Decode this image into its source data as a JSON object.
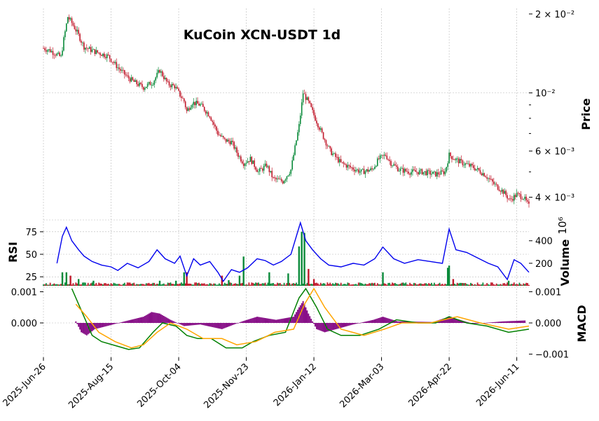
{
  "chart_data": {
    "type": "candlestick",
    "title": "KuCoin XCN-USDT 1d",
    "x_tick_labels": [
      "2025-Jun-26",
      "2025-Aug-15",
      "2025-Oct-04",
      "2025-Nov-23",
      "2026-Jan-12",
      "2026-Mar-03",
      "2026-Apr-22",
      "2026-Jun-11"
    ],
    "x_range": [
      "2025-Jun-26",
      "2026-Jun-20"
    ],
    "grid": true,
    "colors": {
      "up": "#0a8a3a",
      "down": "#c0182a",
      "rsi_line": "#0000ee",
      "macd_line": "#008000",
      "signal_line": "#ffa500",
      "histogram": "#800080"
    },
    "panels": {
      "price": {
        "ylabel": "Price",
        "scale": "log",
        "ylim": [
          0.0034,
          0.021
        ],
        "tick_labels": [
          "2 × 10⁻²",
          "10⁻²",
          "6 × 10⁻³",
          "4 × 10⁻³"
        ],
        "tick_values": [
          0.02,
          0.01,
          0.006,
          0.004
        ],
        "close_path": [
          [
            "2025-06-26",
            0.0148
          ],
          [
            "2025-07-01",
            0.0145
          ],
          [
            "2025-07-05",
            0.0141
          ],
          [
            "2025-07-09",
            0.0137
          ],
          [
            "2025-07-11",
            0.016
          ],
          [
            "2025-07-14",
            0.0195
          ],
          [
            "2025-07-17",
            0.0185
          ],
          [
            "2025-07-21",
            0.017
          ],
          [
            "2025-07-26",
            0.015
          ],
          [
            "2025-08-01",
            0.0145
          ],
          [
            "2025-08-06",
            0.0142
          ],
          [
            "2025-08-13",
            0.0138
          ],
          [
            "2025-08-20",
            0.0125
          ],
          [
            "2025-08-27",
            0.0115
          ],
          [
            "2025-09-01",
            0.011
          ],
          [
            "2025-09-08",
            0.0105
          ],
          [
            "2025-09-15",
            0.011
          ],
          [
            "2025-09-20",
            0.0122
          ],
          [
            "2025-09-26",
            0.0108
          ],
          [
            "2025-10-01",
            0.0106
          ],
          [
            "2025-10-04",
            0.01
          ],
          [
            "2025-10-08",
            0.0093
          ],
          [
            "2025-10-10",
            0.0085
          ],
          [
            "2025-10-14",
            0.0092
          ],
          [
            "2025-10-20",
            0.009
          ],
          [
            "2025-10-27",
            0.0082
          ],
          [
            "2025-11-02",
            0.007
          ],
          [
            "2025-11-07",
            0.0066
          ],
          [
            "2025-11-12",
            0.0065
          ],
          [
            "2025-11-17",
            0.0058
          ],
          [
            "2025-11-21",
            0.0054
          ],
          [
            "2025-11-26",
            0.0056
          ],
          [
            "2025-12-02",
            0.005
          ],
          [
            "2025-12-08",
            0.0053
          ],
          [
            "2025-12-13",
            0.0047
          ],
          [
            "2025-12-20",
            0.0046
          ],
          [
            "2025-12-26",
            0.0051
          ],
          [
            "2026-01-01",
            0.0075
          ],
          [
            "2026-01-04",
            0.01
          ],
          [
            "2026-01-08",
            0.0092
          ],
          [
            "2026-01-13",
            0.008
          ],
          [
            "2026-01-19",
            0.0068
          ],
          [
            "2026-01-24",
            0.006
          ],
          [
            "2026-02-01",
            0.0054
          ],
          [
            "2026-02-08",
            0.0052
          ],
          [
            "2026-02-16",
            0.005
          ],
          [
            "2026-02-24",
            0.0051
          ],
          [
            "2026-03-01",
            0.0056
          ],
          [
            "2026-03-06",
            0.0058
          ],
          [
            "2026-03-10",
            0.0054
          ],
          [
            "2026-03-16",
            0.0051
          ],
          [
            "2026-03-24",
            0.005
          ],
          [
            "2026-04-02",
            0.005
          ],
          [
            "2026-04-12",
            0.0049
          ],
          [
            "2026-04-19",
            0.005
          ],
          [
            "2026-04-22",
            0.0058
          ],
          [
            "2026-04-26",
            0.0056
          ],
          [
            "2026-05-02",
            0.0054
          ],
          [
            "2026-05-10",
            0.0052
          ],
          [
            "2026-05-18",
            0.0049
          ],
          [
            "2026-05-25",
            0.0045
          ],
          [
            "2026-06-01",
            0.0042
          ],
          [
            "2026-06-06",
            0.0039
          ],
          [
            "2026-06-11",
            0.0041
          ],
          [
            "2026-06-16",
            0.004
          ],
          [
            "2026-06-20",
            0.0037
          ]
        ]
      },
      "rsi": {
        "ylabel": "RSI",
        "ylim": [
          15,
          85
        ],
        "tick_labels": [
          "75",
          "50",
          "25"
        ],
        "tick_values": [
          75,
          50,
          25
        ],
        "points": [
          [
            "2025-07-06",
            40
          ],
          [
            "2025-07-10",
            70
          ],
          [
            "2025-07-13",
            80
          ],
          [
            "2025-07-17",
            65
          ],
          [
            "2025-07-22",
            55
          ],
          [
            "2025-07-26",
            48
          ],
          [
            "2025-08-01",
            42
          ],
          [
            "2025-08-08",
            38
          ],
          [
            "2025-08-15",
            36
          ],
          [
            "2025-08-20",
            32
          ],
          [
            "2025-08-27",
            40
          ],
          [
            "2025-09-04",
            35
          ],
          [
            "2025-09-12",
            42
          ],
          [
            "2025-09-18",
            55
          ],
          [
            "2025-09-24",
            45
          ],
          [
            "2025-10-01",
            40
          ],
          [
            "2025-10-05",
            48
          ],
          [
            "2025-10-10",
            26
          ],
          [
            "2025-10-15",
            45
          ],
          [
            "2025-10-20",
            38
          ],
          [
            "2025-10-27",
            42
          ],
          [
            "2025-11-02",
            30
          ],
          [
            "2025-11-06",
            20
          ],
          [
            "2025-11-12",
            33
          ],
          [
            "2025-11-18",
            30
          ],
          [
            "2025-11-24",
            35
          ],
          [
            "2025-12-01",
            45
          ],
          [
            "2025-12-07",
            43
          ],
          [
            "2025-12-13",
            38
          ],
          [
            "2025-12-19",
            42
          ],
          [
            "2025-12-26",
            50
          ],
          [
            "2026-01-02",
            85
          ],
          [
            "2026-01-06",
            65
          ],
          [
            "2026-01-11",
            55
          ],
          [
            "2026-01-17",
            45
          ],
          [
            "2026-01-23",
            38
          ],
          [
            "2026-02-01",
            36
          ],
          [
            "2026-02-10",
            40
          ],
          [
            "2026-02-18",
            38
          ],
          [
            "2026-02-26",
            45
          ],
          [
            "2026-03-04",
            58
          ],
          [
            "2026-03-12",
            45
          ],
          [
            "2026-03-20",
            40
          ],
          [
            "2026-03-30",
            44
          ],
          [
            "2026-04-08",
            42
          ],
          [
            "2026-04-17",
            40
          ],
          [
            "2026-04-22",
            78
          ],
          [
            "2026-04-27",
            55
          ],
          [
            "2026-05-05",
            52
          ],
          [
            "2026-05-13",
            46
          ],
          [
            "2026-05-21",
            40
          ],
          [
            "2026-05-28",
            36
          ],
          [
            "2026-06-04",
            22
          ],
          [
            "2026-06-09",
            44
          ],
          [
            "2026-06-14",
            40
          ],
          [
            "2026-06-20",
            30
          ]
        ]
      },
      "volume": {
        "ylabel": "Volume",
        "scale_note": "10⁶",
        "ylim": [
          0,
          560
        ],
        "tick_labels": [
          "400",
          "200"
        ],
        "tick_values": [
          400,
          200
        ],
        "spikes": [
          [
            "2025-07-10",
            120,
            "up"
          ],
          [
            "2025-07-13",
            120,
            "up"
          ],
          [
            "2025-07-16",
            90,
            "down"
          ],
          [
            "2025-07-22",
            60,
            "up"
          ],
          [
            "2025-08-02",
            45,
            "up"
          ],
          [
            "2025-09-20",
            45,
            "up"
          ],
          [
            "2025-10-02",
            45,
            "up"
          ],
          [
            "2025-10-08",
            120,
            "up"
          ],
          [
            "2025-10-10",
            120,
            "down"
          ],
          [
            "2025-11-05",
            90,
            "down"
          ],
          [
            "2025-11-10",
            50,
            "up"
          ],
          [
            "2025-11-18",
            90,
            "up"
          ],
          [
            "2025-11-21",
            260,
            "up"
          ],
          [
            "2025-12-10",
            120,
            "up"
          ],
          [
            "2025-12-24",
            110,
            "up"
          ],
          [
            "2026-01-01",
            350,
            "up"
          ],
          [
            "2026-01-03",
            480,
            "up"
          ],
          [
            "2026-01-05",
            470,
            "up"
          ],
          [
            "2026-01-08",
            150,
            "down"
          ],
          [
            "2026-01-12",
            60,
            "down"
          ],
          [
            "2026-03-04",
            120,
            "up"
          ],
          [
            "2026-04-21",
            160,
            "up"
          ],
          [
            "2026-04-22",
            180,
            "up"
          ],
          [
            "2026-04-25",
            60,
            "down"
          ],
          [
            "2026-06-05",
            45,
            "up"
          ]
        ]
      },
      "macd": {
        "ylabel": "MACD",
        "ylim": [
          -0.0011,
          0.0011
        ],
        "tick_labels_left": [
          "0.001",
          "0.000"
        ],
        "tick_values_left": [
          0.001,
          0.0
        ],
        "tick_labels_right": [
          "0.001",
          "0.000",
          "−0.001"
        ],
        "tick_values_right": [
          0.001,
          0.0,
          -0.001
        ],
        "macd_line": [
          [
            "2025-07-17",
            0.0011
          ],
          [
            "2025-07-24",
            0.0004
          ],
          [
            "2025-08-01",
            -0.0004
          ],
          [
            "2025-08-08",
            -0.0006
          ],
          [
            "2025-08-20",
            -0.00075
          ],
          [
            "2025-08-28",
            -0.00085
          ],
          [
            "2025-09-05",
            -0.0008
          ],
          [
            "2025-09-15",
            -0.0003
          ],
          [
            "2025-09-22",
            0.0
          ],
          [
            "2025-10-02",
            -0.0001
          ],
          [
            "2025-10-10",
            -0.0004
          ],
          [
            "2025-10-18",
            -0.0005
          ],
          [
            "2025-10-28",
            -0.0005
          ],
          [
            "2025-11-08",
            -0.0008
          ],
          [
            "2025-11-20",
            -0.0008
          ],
          [
            "2025-11-28",
            -0.0006
          ],
          [
            "2025-12-10",
            -0.0004
          ],
          [
            "2025-12-22",
            -0.0003
          ],
          [
            "2026-01-01",
            0.0008
          ],
          [
            "2026-01-06",
            0.0011
          ],
          [
            "2026-01-14",
            0.0005
          ],
          [
            "2026-01-22",
            -0.0002
          ],
          [
            "2026-02-01",
            -0.0004
          ],
          [
            "2026-02-15",
            -0.0004
          ],
          [
            "2026-03-01",
            -0.0002
          ],
          [
            "2026-03-14",
            0.0001
          ],
          [
            "2026-03-30",
            0.0
          ],
          [
            "2026-04-12",
            0.0
          ],
          [
            "2026-04-22",
            0.0002
          ],
          [
            "2026-05-05",
            0.0
          ],
          [
            "2026-05-20",
            -0.0001
          ],
          [
            "2026-06-05",
            -0.0003
          ],
          [
            "2026-06-20",
            -0.0002
          ]
        ],
        "signal_line": [
          [
            "2025-07-20",
            0.0006
          ],
          [
            "2025-07-28",
            0.0002
          ],
          [
            "2025-08-06",
            -0.0003
          ],
          [
            "2025-08-18",
            -0.0006
          ],
          [
            "2025-08-30",
            -0.0008
          ],
          [
            "2025-09-08",
            -0.0007
          ],
          [
            "2025-09-18",
            -0.0003
          ],
          [
            "2025-09-28",
            0.0
          ],
          [
            "2025-10-10",
            -0.0002
          ],
          [
            "2025-10-22",
            -0.0005
          ],
          [
            "2025-11-05",
            -0.0005
          ],
          [
            "2025-11-16",
            -0.0007
          ],
          [
            "2025-11-30",
            -0.0006
          ],
          [
            "2025-12-14",
            -0.0003
          ],
          [
            "2025-12-28",
            -0.0002
          ],
          [
            "2026-01-05",
            0.0006
          ],
          [
            "2026-01-12",
            0.0011
          ],
          [
            "2026-01-20",
            0.0005
          ],
          [
            "2026-02-01",
            -0.0002
          ],
          [
            "2026-02-18",
            -0.0004
          ],
          [
            "2026-03-05",
            -0.0002
          ],
          [
            "2026-03-18",
            0.0
          ],
          [
            "2026-04-08",
            0.0
          ],
          [
            "2026-04-28",
            0.0002
          ],
          [
            "2026-05-15",
            0.0
          ],
          [
            "2026-06-05",
            -0.0002
          ],
          [
            "2026-06-20",
            -0.0001
          ]
        ],
        "histogram": [
          [
            "2025-07-20",
            5e-05
          ],
          [
            "2025-07-24",
            -0.0003
          ],
          [
            "2025-07-28",
            -0.0004
          ],
          [
            "2025-08-03",
            -0.0002
          ],
          [
            "2025-08-12",
            -0.0001
          ],
          [
            "2025-08-25",
            5e-05
          ],
          [
            "2025-09-08",
            0.0002
          ],
          [
            "2025-09-14",
            0.00035
          ],
          [
            "2025-09-20",
            0.0003
          ],
          [
            "2025-09-28",
            0.0001
          ],
          [
            "2025-10-08",
            -0.0001
          ],
          [
            "2025-10-20",
            -5e-05
          ],
          [
            "2025-11-05",
            -0.0002
          ],
          [
            "2025-11-20",
            5e-05
          ],
          [
            "2025-12-01",
            0.0002
          ],
          [
            "2025-12-15",
            0.0001
          ],
          [
            "2025-12-28",
            0.0002
          ],
          [
            "2026-01-01",
            0.0005
          ],
          [
            "2026-01-04",
            0.0007
          ],
          [
            "2026-01-08",
            0.0003
          ],
          [
            "2026-01-14",
            -0.0002
          ],
          [
            "2026-01-20",
            -0.0003
          ],
          [
            "2026-02-10",
            -5e-05
          ],
          [
            "2026-02-25",
            0.0001
          ],
          [
            "2026-03-04",
            0.0002
          ],
          [
            "2026-03-15",
            5e-05
          ],
          [
            "2026-04-10",
            3e-05
          ],
          [
            "2026-04-22",
            0.0002
          ],
          [
            "2026-05-10",
            -3e-05
          ],
          [
            "2026-06-01",
            5e-05
          ],
          [
            "2026-06-18",
            8e-05
          ]
        ]
      }
    }
  }
}
